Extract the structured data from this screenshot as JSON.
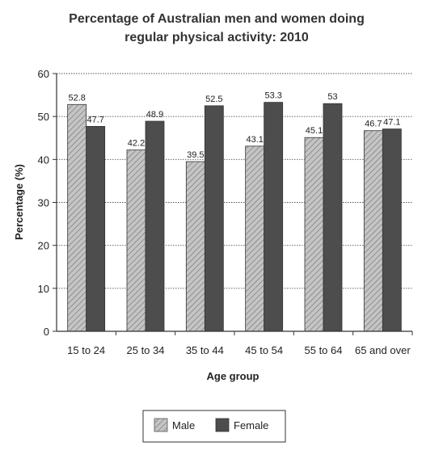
{
  "chart_data": {
    "type": "bar",
    "title": "Percentage of Australian men and women doing",
    "subtitle": "regular physical activity: 2010",
    "xlabel": "Age group",
    "ylabel": "Percentage (%)",
    "ylim": [
      0,
      60
    ],
    "yticks": [
      "0",
      "10",
      "20",
      "30",
      "40",
      "50",
      "60"
    ],
    "grid": "horizontal-dotted",
    "legend_position": "bottom-center",
    "categories": [
      "15 to 24",
      "25 to 34",
      "35 to 44",
      "45 to 54",
      "55 to 64",
      "65 and over"
    ],
    "series": [
      {
        "name": "Male",
        "values": [
          52.8,
          42.2,
          39.5,
          43.1,
          45.1,
          46.7
        ],
        "labels": [
          "52.8",
          "42.2",
          "39.5",
          "43.1",
          "45.1",
          "46.7"
        ],
        "color": "#b3b3b3",
        "pattern": "hatched"
      },
      {
        "name": "Female",
        "values": [
          47.7,
          48.9,
          52.5,
          53.3,
          53,
          47.1
        ],
        "labels": [
          "47.7",
          "48.9",
          "52.5",
          "53.3",
          "53",
          "47.1"
        ],
        "color": "#4d4d4d",
        "pattern": "solid"
      }
    ]
  }
}
